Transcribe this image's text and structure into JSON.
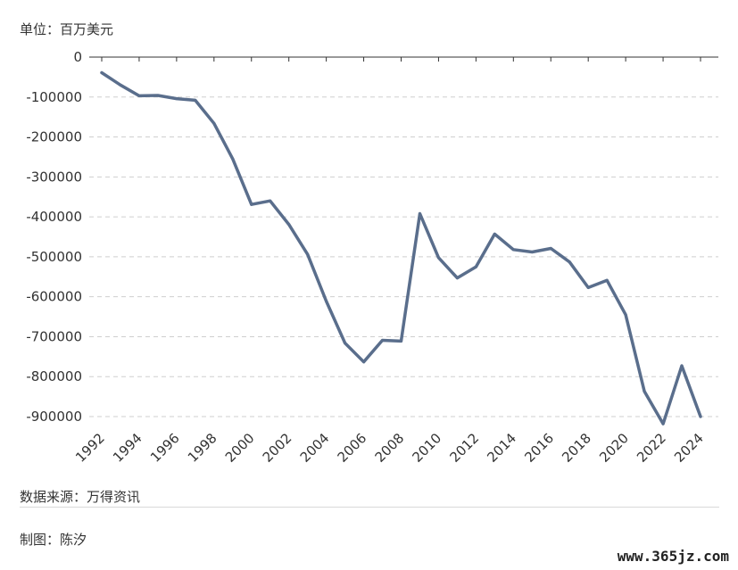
{
  "unit_label": "单位：百万美元",
  "source_label": "数据来源：万得资讯",
  "author_label": "制图：陈汐",
  "watermark": "www.365jz.com",
  "colors": {
    "line": "#5a6e8c",
    "grid": "#cfcfcf",
    "axis": "#333333"
  },
  "chart_data": {
    "type": "line",
    "title": "",
    "xlabel": "",
    "ylabel": "",
    "ylim": [
      -900000,
      0
    ],
    "yticks": [
      "0",
      "-100000",
      "-200000",
      "-300000",
      "-400000",
      "-500000",
      "-600000",
      "-700000",
      "-800000",
      "-900000"
    ],
    "xticks": [
      "1992",
      "1994",
      "1996",
      "1998",
      "2000",
      "2002",
      "2004",
      "2006",
      "2008",
      "2010",
      "2012",
      "2014",
      "2016",
      "2018",
      "2020",
      "2022",
      "2024"
    ],
    "grid": true,
    "x": [
      1992,
      1993,
      1994,
      1995,
      1996,
      1997,
      1998,
      1999,
      2000,
      2001,
      2002,
      2003,
      2004,
      2005,
      2006,
      2007,
      2008,
      2009,
      2010,
      2011,
      2012,
      2013,
      2014,
      2015,
      2016,
      2017,
      2018,
      2019,
      2020,
      2021,
      2022,
      2023,
      2024
    ],
    "series": [
      {
        "values": [
          -39000,
          -70000,
          -97000,
          -96000,
          -104000,
          -108000,
          -166000,
          -255000,
          -369000,
          -360000,
          -419000,
          -494000,
          -611000,
          -716000,
          -763000,
          -709000,
          -711000,
          -392000,
          -502000,
          -553000,
          -525000,
          -443000,
          -482000,
          -488000,
          -479000,
          -513000,
          -577000,
          -559000,
          -645000,
          -837000,
          -918000,
          -773000,
          -900000
        ]
      }
    ]
  }
}
